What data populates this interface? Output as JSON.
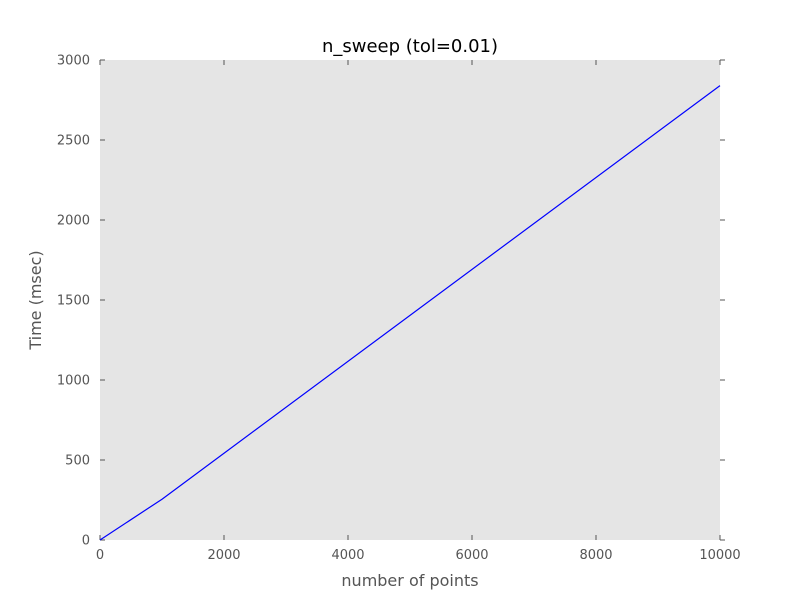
{
  "chart_data": {
    "type": "line",
    "title": "n_sweep (tol=0.01)",
    "xlabel": "number of points",
    "ylabel": "Time (msec)",
    "xlim": [
      0,
      10000
    ],
    "ylim": [
      0,
      3000
    ],
    "xticks": [
      0,
      2000,
      4000,
      6000,
      8000,
      10000
    ],
    "yticks": [
      0,
      500,
      1000,
      1500,
      2000,
      2500,
      3000
    ],
    "grid": false,
    "legend": "none",
    "series": [
      {
        "color": "#0000ff",
        "x": [
          0,
          1000,
          10000
        ],
        "y": [
          0,
          255,
          2840
        ]
      }
    ]
  },
  "colors": {
    "plot_background": "#e5e5e5",
    "axis_color": "#555555",
    "title_color": "#000000"
  }
}
